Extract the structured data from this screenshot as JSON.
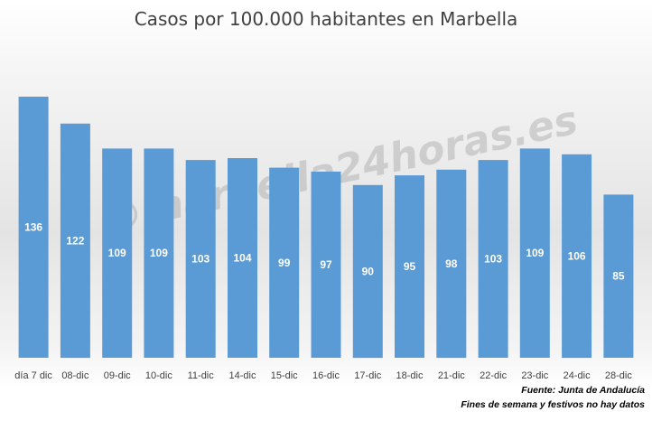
{
  "chart_data": {
    "type": "bar",
    "title": "Casos por 100.000 habitantes en Marbella",
    "xlabel": "",
    "ylabel": "",
    "categories": [
      "día 7 dic",
      "08-dic",
      "09-dic",
      "10-dic",
      "11-dic",
      "14-dic",
      "15-dic",
      "16-dic",
      "17-dic",
      "18-dic",
      "21-dic",
      "22-dic",
      "23-dic",
      "24-dic",
      "28-dic"
    ],
    "values": [
      136,
      122,
      109,
      109,
      103,
      104,
      99,
      97,
      90,
      95,
      98,
      103,
      109,
      106,
      85
    ],
    "ylim": [
      0,
      160
    ],
    "grid": false,
    "legend": "none",
    "colors": {
      "bar": "#5b9bd5",
      "label": "#ffffff",
      "title": "#404040",
      "tick": "#404040"
    }
  },
  "watermark": "©marbella24horas.es",
  "footnotes": {
    "source": "Fuente: Junta de Andalucía",
    "note": "Fines de semana y festivos no hay datos"
  }
}
